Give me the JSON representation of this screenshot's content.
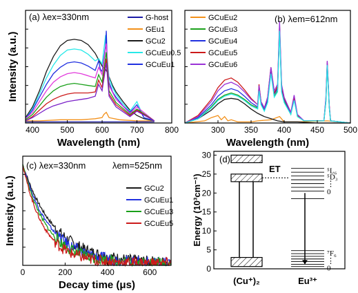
{
  "chart_data": [
    {
      "panel": "a",
      "type": "line",
      "annotation": "(a) λex=330nm",
      "xlabel": "Wavelength (nm)",
      "ylabel": "Intensity (a.u.)",
      "xlim": [
        380,
        800
      ],
      "ylim": [
        0,
        1.05
      ],
      "xticks": [
        400,
        500,
        600,
        700,
        800
      ],
      "legend_position": "top-right",
      "series": [
        {
          "name": "G-host",
          "color": "#1a1aa6",
          "x": [
            380,
            400,
            440,
            480,
            520,
            560,
            600,
            640,
            680,
            720,
            750
          ],
          "y": [
            0.01,
            0.01,
            0.01,
            0.01,
            0.01,
            0.01,
            0.01,
            0.01,
            0.01,
            0.01,
            0.01
          ]
        },
        {
          "name": "GEu1",
          "color": "#f39019",
          "x": [
            380,
            420,
            480,
            540,
            580,
            600,
            605,
            612,
            620,
            650,
            700,
            750
          ],
          "y": [
            0.02,
            0.02,
            0.03,
            0.03,
            0.04,
            0.05,
            0.08,
            0.1,
            0.05,
            0.03,
            0.02,
            0.02
          ]
        },
        {
          "name": "GCu2",
          "color": "#1a1a1a",
          "x": [
            380,
            400,
            420,
            440,
            460,
            480,
            500,
            520,
            540,
            560,
            580,
            590,
            600,
            610,
            615,
            620,
            630,
            640,
            660,
            680,
            700,
            720,
            750
          ],
          "y": [
            0.05,
            0.15,
            0.3,
            0.48,
            0.62,
            0.72,
            0.77,
            0.78,
            0.77,
            0.73,
            0.65,
            0.59,
            0.53,
            0.5,
            0.47,
            0.43,
            0.35,
            0.29,
            0.2,
            0.12,
            0.07,
            0.04,
            0.02
          ]
        },
        {
          "name": "GCuEu0.5",
          "color": "#27e8e8",
          "x": [
            380,
            400,
            420,
            440,
            460,
            480,
            500,
            520,
            540,
            560,
            580,
            590,
            600,
            610,
            615,
            620,
            630,
            640,
            660,
            680,
            700,
            720,
            750
          ],
          "y": [
            0.04,
            0.13,
            0.27,
            0.42,
            0.54,
            0.63,
            0.68,
            0.69,
            0.68,
            0.64,
            0.58,
            0.6,
            0.55,
            0.82,
            0.6,
            0.42,
            0.33,
            0.27,
            0.18,
            0.11,
            0.2,
            0.05,
            0.02
          ]
        },
        {
          "name": "GCuEu1",
          "color": "#2030e0",
          "x": [
            380,
            400,
            420,
            440,
            460,
            480,
            500,
            520,
            540,
            560,
            580,
            590,
            595,
            600,
            610,
            612,
            615,
            620,
            630,
            640,
            660,
            680,
            700,
            720,
            750
          ],
          "y": [
            0.04,
            0.12,
            0.24,
            0.36,
            0.46,
            0.52,
            0.56,
            0.57,
            0.56,
            0.53,
            0.49,
            0.58,
            0.5,
            0.48,
            0.72,
            0.86,
            0.55,
            0.38,
            0.29,
            0.24,
            0.16,
            0.1,
            0.17,
            0.05,
            0.02
          ]
        },
        {
          "name": "",
          "color": "#e23bdc",
          "x": [
            380,
            400,
            420,
            440,
            460,
            480,
            500,
            520,
            540,
            560,
            580,
            590,
            600,
            612,
            620,
            640,
            680,
            700,
            750
          ],
          "y": [
            0.04,
            0.1,
            0.2,
            0.3,
            0.38,
            0.43,
            0.46,
            0.47,
            0.46,
            0.44,
            0.42,
            0.52,
            0.45,
            0.74,
            0.35,
            0.22,
            0.09,
            0.15,
            0.02
          ]
        },
        {
          "name": "",
          "color": "#1aa01a",
          "x": [
            380,
            400,
            420,
            440,
            460,
            480,
            500,
            520,
            540,
            560,
            580,
            590,
            600,
            612,
            620,
            640,
            680,
            700,
            750
          ],
          "y": [
            0.03,
            0.08,
            0.16,
            0.24,
            0.3,
            0.34,
            0.36,
            0.37,
            0.36,
            0.35,
            0.34,
            0.45,
            0.38,
            0.66,
            0.3,
            0.19,
            0.08,
            0.13,
            0.02
          ]
        },
        {
          "name": "",
          "color": "#cc1a1a",
          "x": [
            380,
            400,
            420,
            440,
            460,
            480,
            500,
            520,
            540,
            560,
            580,
            590,
            600,
            612,
            620,
            640,
            680,
            700,
            750
          ],
          "y": [
            0.02,
            0.06,
            0.12,
            0.18,
            0.22,
            0.25,
            0.27,
            0.28,
            0.28,
            0.28,
            0.29,
            0.4,
            0.33,
            0.6,
            0.27,
            0.17,
            0.07,
            0.12,
            0.02
          ]
        },
        {
          "name": "",
          "color": "#7a20c8",
          "x": [
            380,
            400,
            420,
            440,
            460,
            480,
            500,
            520,
            540,
            560,
            580,
            590,
            600,
            612,
            620,
            640,
            680,
            700,
            750
          ],
          "y": [
            0.02,
            0.05,
            0.09,
            0.13,
            0.16,
            0.18,
            0.2,
            0.21,
            0.22,
            0.23,
            0.25,
            0.36,
            0.3,
            0.56,
            0.25,
            0.15,
            0.06,
            0.11,
            0.02
          ]
        }
      ]
    },
    {
      "panel": "b",
      "type": "line",
      "annotation": "(b) λem=612nm",
      "xlabel": "Wavelength (nm)",
      "ylabel": "",
      "xlim": [
        250,
        500
      ],
      "ylim": [
        0,
        1.05
      ],
      "xticks": [
        300,
        350,
        400,
        450,
        500
      ],
      "legend_position": "top-left",
      "series": [
        {
          "name": "GCuEu2",
          "color": "#f39019",
          "x": [
            250,
            280,
            290,
            300,
            305,
            310,
            315,
            320,
            330,
            340,
            350,
            360,
            380,
            393,
            400,
            420,
            465,
            500
          ],
          "y": [
            0.0,
            0.02,
            0.05,
            0.07,
            0.03,
            0.06,
            0.02,
            0.03,
            0.01,
            0.01,
            0.01,
            0.02,
            0.03,
            0.06,
            0.01,
            0.01,
            0.02,
            0.0
          ]
        },
        {
          "name": "GCuEu3",
          "color": "#1aa01a",
          "x": [
            250,
            270,
            290,
            300,
            310,
            320,
            330,
            340,
            350,
            360,
            362,
            365,
            370,
            375,
            380,
            385,
            390,
            393,
            396,
            400,
            410,
            415,
            420,
            430,
            460,
            463,
            465,
            468,
            470,
            500
          ],
          "y": [
            0.0,
            0.04,
            0.15,
            0.22,
            0.26,
            0.28,
            0.26,
            0.22,
            0.17,
            0.14,
            0.32,
            0.18,
            0.12,
            0.2,
            0.48,
            0.25,
            0.3,
            0.88,
            0.3,
            0.2,
            0.08,
            0.22,
            0.06,
            0.02,
            0.02,
            0.2,
            0.55,
            0.15,
            0.02,
            0.0
          ]
        },
        {
          "name": "GCuEu4",
          "color": "#2030e0",
          "x": [
            250,
            270,
            290,
            300,
            310,
            320,
            330,
            340,
            350,
            360,
            362,
            365,
            370,
            375,
            380,
            385,
            390,
            393,
            396,
            400,
            410,
            415,
            420,
            430,
            460,
            463,
            465,
            468,
            470,
            500
          ],
          "y": [
            0.0,
            0.05,
            0.17,
            0.25,
            0.3,
            0.32,
            0.3,
            0.25,
            0.19,
            0.15,
            0.33,
            0.19,
            0.13,
            0.22,
            0.5,
            0.27,
            0.32,
            0.9,
            0.32,
            0.22,
            0.09,
            0.23,
            0.07,
            0.02,
            0.02,
            0.22,
            0.56,
            0.16,
            0.02,
            0.0
          ]
        },
        {
          "name": "GCuEu5",
          "color": "#cc1a1a",
          "x": [
            250,
            270,
            290,
            300,
            310,
            320,
            330,
            340,
            350,
            360,
            362,
            365,
            370,
            375,
            380,
            385,
            390,
            393,
            396,
            400,
            410,
            415,
            420,
            430,
            460,
            463,
            465,
            468,
            470,
            500
          ],
          "y": [
            0.0,
            0.07,
            0.22,
            0.33,
            0.4,
            0.42,
            0.38,
            0.31,
            0.23,
            0.17,
            0.36,
            0.2,
            0.14,
            0.24,
            0.52,
            0.28,
            0.34,
            0.92,
            0.34,
            0.23,
            0.1,
            0.24,
            0.07,
            0.02,
            0.02,
            0.23,
            0.57,
            0.17,
            0.02,
            0.0
          ]
        },
        {
          "name": "GCuEu6",
          "color": "#9a32d6",
          "x": [
            250,
            270,
            290,
            300,
            310,
            320,
            330,
            340,
            350,
            360,
            362,
            365,
            370,
            375,
            380,
            385,
            390,
            393,
            396,
            400,
            410,
            415,
            420,
            430,
            460,
            463,
            465,
            468,
            470,
            500
          ],
          "y": [
            0.0,
            0.06,
            0.2,
            0.3,
            0.36,
            0.38,
            0.35,
            0.29,
            0.22,
            0.17,
            0.35,
            0.2,
            0.14,
            0.24,
            0.52,
            0.3,
            0.36,
            0.95,
            0.36,
            0.24,
            0.1,
            0.26,
            0.08,
            0.02,
            0.02,
            0.24,
            0.58,
            0.17,
            0.02,
            0.0
          ]
        },
        {
          "name": "",
          "color": "#1a1a1a",
          "x": [
            250,
            270,
            290,
            300,
            310,
            320,
            330,
            340,
            350,
            360,
            370,
            380,
            390,
            400,
            420,
            450,
            500
          ],
          "y": [
            0.0,
            0.04,
            0.12,
            0.18,
            0.22,
            0.23,
            0.22,
            0.18,
            0.13,
            0.09,
            0.06,
            0.04,
            0.02,
            0.01,
            0.01,
            0.0,
            0.0
          ]
        },
        {
          "name": "",
          "color": "#27e8e8",
          "x": [
            250,
            270,
            290,
            300,
            310,
            320,
            330,
            340,
            350,
            360,
            362,
            365,
            370,
            375,
            380,
            385,
            390,
            393,
            396,
            400,
            410,
            415,
            420,
            430,
            460,
            463,
            465,
            468,
            470,
            500
          ],
          "y": [
            0.0,
            0.04,
            0.14,
            0.21,
            0.25,
            0.27,
            0.25,
            0.21,
            0.16,
            0.13,
            0.3,
            0.17,
            0.11,
            0.19,
            0.46,
            0.24,
            0.29,
            0.86,
            0.29,
            0.19,
            0.08,
            0.21,
            0.06,
            0.02,
            0.02,
            0.2,
            0.54,
            0.15,
            0.02,
            0.0
          ]
        }
      ]
    },
    {
      "panel": "c",
      "type": "line",
      "annotation_left": "(c) λex=330nm",
      "annotation_right": "λem=525nm",
      "xlabel": "Decay time (μs)",
      "ylabel": "Intensity (a.u.)",
      "xlim": [
        0,
        700
      ],
      "ylim": [
        0,
        1.05
      ],
      "xticks": [
        0,
        200,
        400,
        600
      ],
      "legend_position": "right",
      "series": [
        {
          "name": "GCu2",
          "color": "#1a1a1a",
          "tau": 150,
          "noise": 0.05
        },
        {
          "name": "GCuEu1",
          "color": "#2030e0",
          "tau": 130,
          "noise": 0.05
        },
        {
          "name": "GCuEu3",
          "color": "#1aa01a",
          "tau": 115,
          "noise": 0.05
        },
        {
          "name": "GCuEu5",
          "color": "#cc1a1a",
          "tau": 100,
          "noise": 0.05
        }
      ]
    },
    {
      "panel": "d",
      "type": "diagram",
      "annotation": "(d)",
      "ylabel": "Energy (10³cm⁻¹)",
      "yticks": [
        0,
        5,
        10,
        15,
        20,
        25,
        30
      ],
      "ylim": [
        0,
        31
      ],
      "cu_label": "(Cu⁺)₂",
      "eu_label": "Eu³⁺",
      "transfer_label": "ET",
      "level_labels": [
        {
          "text": "⁵L₆",
          "y": 26.0
        },
        {
          "text": "⁵D₃",
          "y": 24.3
        },
        {
          "text": "⋮",
          "y": 22.5
        },
        {
          "text": "0",
          "y": 20.4
        },
        {
          "text": "⁷F₆",
          "y": 4.2
        },
        {
          "text": "⋮",
          "y": 2.2
        },
        {
          "text": "0",
          "y": 0.3
        }
      ]
    }
  ]
}
